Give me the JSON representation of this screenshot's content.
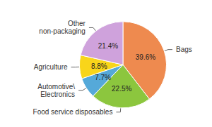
{
  "chart_data": {
    "type": "pie",
    "categories": [
      "Bags",
      "Food service disposables",
      "Automotive\\Electronics",
      "Agriculture",
      "Other non-packaging"
    ],
    "values": [
      39.6,
      22.5,
      7.7,
      8.8,
      21.4
    ],
    "value_labels": [
      "39.6%",
      "22.5%",
      "7.7%",
      "8.8%",
      "21.4%"
    ],
    "colors": [
      "#ee8a4f",
      "#8cc63e",
      "#55a9d9",
      "#f8d51a",
      "#cfa2dc"
    ],
    "data_labels": true
  }
}
